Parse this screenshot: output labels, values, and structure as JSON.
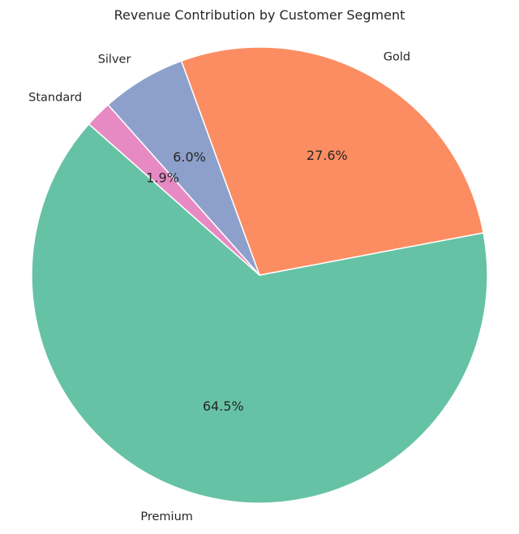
{
  "chart_data": {
    "type": "pie",
    "title": "Revenue Contribution by Customer Segment",
    "slices": [
      {
        "label": "Premium",
        "value": 64.5,
        "pct_label": "64.5%",
        "color": "#66c2a5"
      },
      {
        "label": "Gold",
        "value": 27.6,
        "pct_label": "27.6%",
        "color": "#fc8d62"
      },
      {
        "label": "Silver",
        "value": 6.0,
        "pct_label": "6.0%",
        "color": "#8da0cb"
      },
      {
        "label": "Standard",
        "value": 1.9,
        "pct_label": "1.9%",
        "color": "#e78ac3"
      }
    ],
    "start_angle_deg": 138.5,
    "direction": "counterclockwise",
    "slice_edge_color": "#ffffff"
  }
}
